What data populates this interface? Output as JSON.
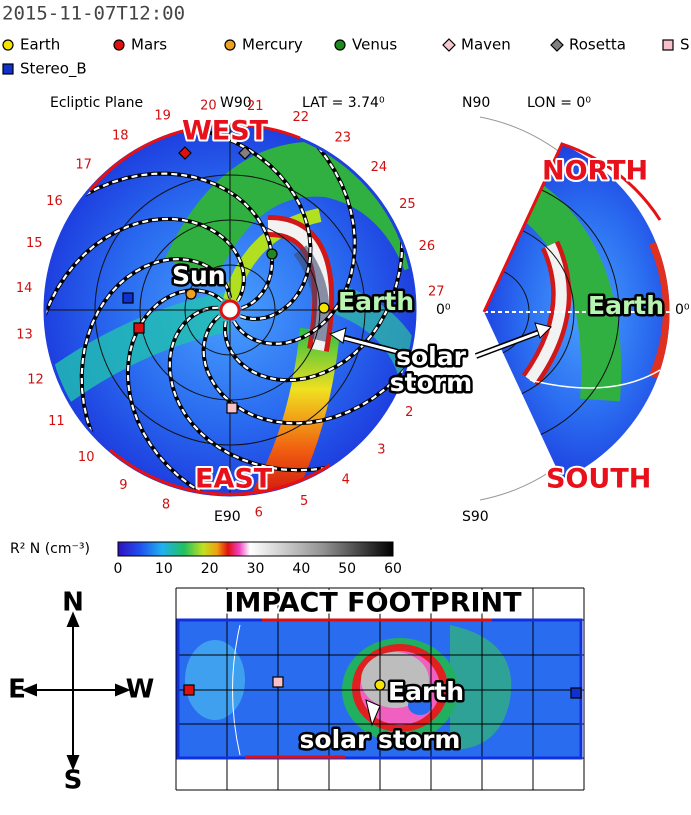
{
  "header": {
    "timestamp": "2015-11-07T12:00"
  },
  "legend": [
    {
      "label": "Earth",
      "color": "#f5e400",
      "shape": "circle"
    },
    {
      "label": "Mars",
      "color": "#e01010",
      "shape": "circle"
    },
    {
      "label": "Mercury",
      "color": "#f0a020",
      "shape": "circle"
    },
    {
      "label": "Venus",
      "color": "#1e8a1e",
      "shape": "circle"
    },
    {
      "label": "Maven",
      "color": "#f8c8d0",
      "shape": "diamond"
    },
    {
      "label": "Rosetta",
      "color": "#808080",
      "shape": "diamond"
    },
    {
      "label": "S",
      "color": "#f8c0c8",
      "shape": "square"
    },
    {
      "label": "Stereo_B",
      "color": "#1030d0",
      "shape": "square"
    }
  ],
  "ecliptic": {
    "title": "Ecliptic Plane",
    "top_label": "W90",
    "lat": "LAT = 3.74⁰",
    "bottom_label": "E90",
    "zero_label": "0⁰",
    "angle_labels": [
      "2",
      "3",
      "4",
      "5",
      "6",
      "8",
      "9",
      "10",
      "11",
      "12",
      "13",
      "14",
      "15",
      "16",
      "17",
      "18",
      "19",
      "20",
      "21",
      "22",
      "23",
      "24",
      "25",
      "26",
      "27"
    ],
    "west": "WEST",
    "east": "EAST",
    "sun": "Sun",
    "earth": "Earth",
    "storm": [
      "solar",
      "storm"
    ]
  },
  "meridional": {
    "top_label": "N90",
    "lon": "LON = 0⁰",
    "bottom_label": "S90",
    "zero_label": "0⁰",
    "north": "NORTH",
    "south": "SOUTH",
    "earth": "Earth"
  },
  "colorbar": {
    "label": "R² N (cm⁻³)",
    "ticks": [
      0,
      10,
      20,
      30,
      40,
      50,
      60
    ]
  },
  "footprint": {
    "title": "IMPACT FOOTPRINT",
    "earth": "Earth",
    "storm": "solar storm",
    "compass": {
      "north": "N",
      "south": "S",
      "east": "E",
      "west": "W"
    }
  }
}
